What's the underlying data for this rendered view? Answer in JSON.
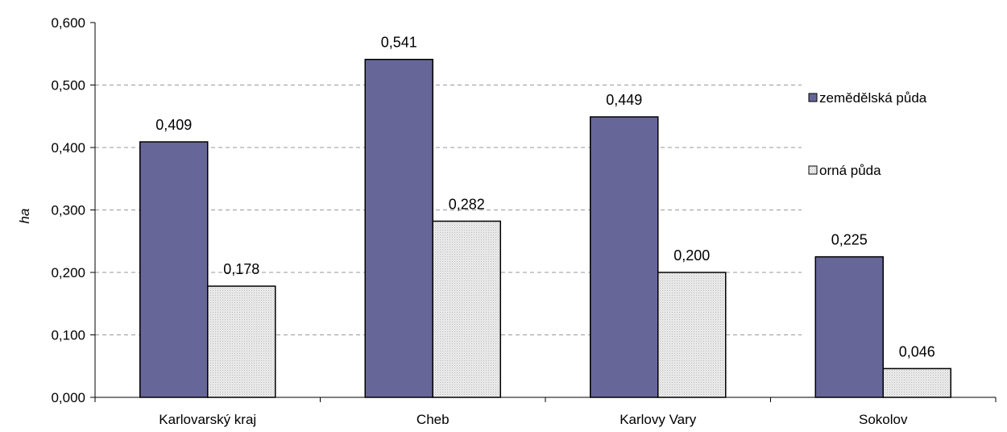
{
  "chart_data": {
    "type": "bar",
    "title": "",
    "xlabel": "",
    "ylabel": "ha",
    "categories": [
      "Karlovarský kraj",
      "Cheb",
      "Karlovy Vary",
      "Sokolov"
    ],
    "series": [
      {
        "name": "zemědělská půda",
        "values": [
          0.409,
          0.541,
          0.449,
          0.225
        ],
        "value_labels": [
          "0,409",
          "0,541",
          "0,449",
          "0,225"
        ],
        "color": "#666699"
      },
      {
        "name": "orná půda",
        "values": [
          0.178,
          0.282,
          0.2,
          0.046
        ],
        "value_labels": [
          "0,178",
          "0,282",
          "0,200",
          "0,046"
        ],
        "color": "#e6e6e6"
      }
    ],
    "ylim": [
      0,
      0.6
    ],
    "yticks": [
      0,
      0.1,
      0.2,
      0.3,
      0.4,
      0.5,
      0.6
    ],
    "ytick_labels": [
      "0,000",
      "0,100",
      "0,200",
      "0,300",
      "0,400",
      "0,500",
      "0,600"
    ],
    "grid": true,
    "legend_position": "top-right"
  }
}
